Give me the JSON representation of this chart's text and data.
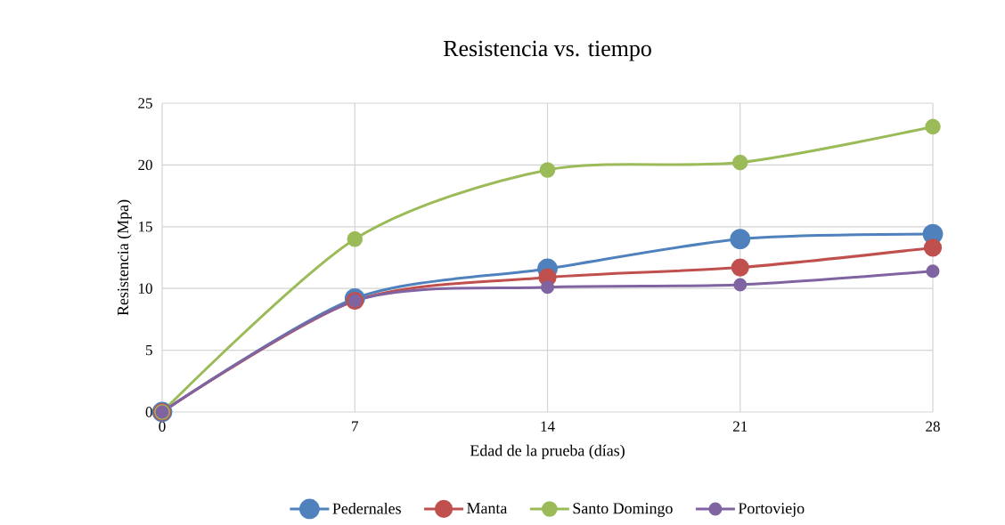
{
  "chart_data": {
    "type": "line",
    "title": "Resistencia vs. tiempo",
    "xlabel": "Edad de la prueba (días)",
    "ylabel": "Resistencia (Mpa)",
    "x": [
      0,
      7,
      14,
      21,
      28
    ],
    "xlim": [
      0,
      28
    ],
    "xticks": [
      0,
      7,
      14,
      21,
      28
    ],
    "ylim": [
      0,
      25
    ],
    "yticks": [
      0,
      5,
      10,
      15,
      20,
      25
    ],
    "grid": true,
    "legend": "bottom",
    "marker": "circle",
    "line_style": "solid",
    "series": [
      {
        "name": "Pedernales",
        "color": "#4f81bd",
        "values": [
          0,
          9.2,
          11.6,
          14.0,
          14.4
        ]
      },
      {
        "name": "Manta",
        "color": "#c0504d",
        "values": [
          0,
          9.0,
          10.9,
          11.7,
          13.3
        ]
      },
      {
        "name": "Santo Domingo",
        "color": "#9bbb59",
        "values": [
          0,
          14.0,
          19.6,
          20.2,
          23.1
        ]
      },
      {
        "name": "Portoviejo",
        "color": "#8064a2",
        "values": [
          0,
          9.0,
          10.1,
          10.3,
          11.4
        ]
      }
    ]
  }
}
